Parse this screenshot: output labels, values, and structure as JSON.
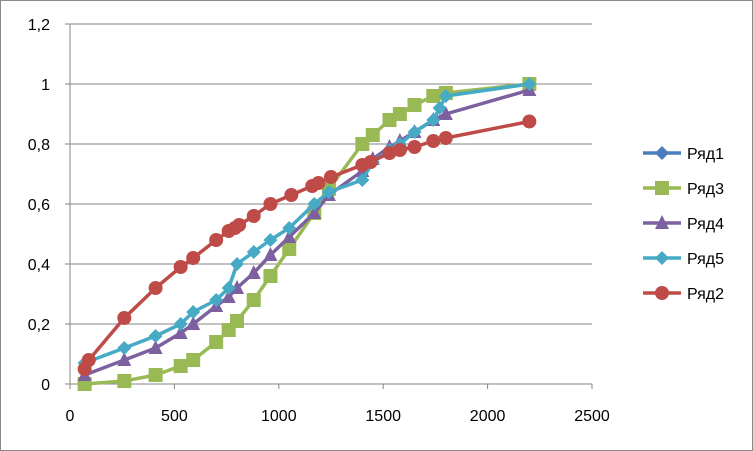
{
  "chart_data": {
    "type": "line",
    "title": "",
    "xlabel": "",
    "ylabel": "",
    "xlim": [
      0,
      2500
    ],
    "ylim": [
      0,
      1.2
    ],
    "x_ticks": [
      "0",
      "500",
      "1000",
      "1500",
      "2000",
      "2500"
    ],
    "y_ticks": [
      "0",
      "0,2",
      "0,4",
      "0,6",
      "0,8",
      "1",
      "1,2"
    ],
    "x_tick_values": [
      0,
      500,
      1000,
      1500,
      2000,
      2500
    ],
    "y_tick_values": [
      0,
      0.2,
      0.4,
      0.6,
      0.8,
      1.0,
      1.2
    ],
    "grid": "horizontal",
    "legend_position": "right",
    "series": [
      {
        "name": "Ряд1",
        "color": "#4a7ebb",
        "marker": "diamond",
        "points": []
      },
      {
        "name": "Ряд3",
        "color": "#98b954",
        "marker": "square",
        "points": [
          [
            70,
            0
          ],
          [
            260,
            0.01
          ],
          [
            410,
            0.03
          ],
          [
            530,
            0.06
          ],
          [
            590,
            0.08
          ],
          [
            700,
            0.14
          ],
          [
            760,
            0.18
          ],
          [
            800,
            0.21
          ],
          [
            880,
            0.28
          ],
          [
            960,
            0.36
          ],
          [
            1050,
            0.45
          ],
          [
            1170,
            0.57
          ],
          [
            1240,
            0.65
          ],
          [
            1400,
            0.8
          ],
          [
            1450,
            0.83
          ],
          [
            1530,
            0.88
          ],
          [
            1580,
            0.9
          ],
          [
            1650,
            0.93
          ],
          [
            1740,
            0.96
          ],
          [
            1800,
            0.97
          ],
          [
            2200,
            1.0
          ]
        ]
      },
      {
        "name": "Ряд4",
        "color": "#7d60a0",
        "marker": "triangle",
        "points": [
          [
            70,
            0.03
          ],
          [
            260,
            0.08
          ],
          [
            410,
            0.12
          ],
          [
            530,
            0.17
          ],
          [
            590,
            0.2
          ],
          [
            700,
            0.26
          ],
          [
            760,
            0.29
          ],
          [
            800,
            0.32
          ],
          [
            880,
            0.37
          ],
          [
            960,
            0.43
          ],
          [
            1050,
            0.49
          ],
          [
            1170,
            0.57
          ],
          [
            1240,
            0.63
          ],
          [
            1400,
            0.71
          ],
          [
            1450,
            0.75
          ],
          [
            1530,
            0.79
          ],
          [
            1580,
            0.81
          ],
          [
            1650,
            0.84
          ],
          [
            1740,
            0.88
          ],
          [
            1800,
            0.9
          ],
          [
            2200,
            0.98
          ]
        ]
      },
      {
        "name": "Ряд5",
        "color": "#46aac5",
        "marker": "diamond",
        "points": [
          [
            70,
            0.07
          ],
          [
            260,
            0.12
          ],
          [
            410,
            0.16
          ],
          [
            530,
            0.2
          ],
          [
            590,
            0.24
          ],
          [
            700,
            0.28
          ],
          [
            760,
            0.32
          ],
          [
            800,
            0.4
          ],
          [
            880,
            0.44
          ],
          [
            960,
            0.48
          ],
          [
            1050,
            0.52
          ],
          [
            1170,
            0.6
          ],
          [
            1240,
            0.64
          ],
          [
            1400,
            0.68
          ],
          [
            1450,
            0.74
          ],
          [
            1530,
            0.78
          ],
          [
            1580,
            0.8
          ],
          [
            1650,
            0.84
          ],
          [
            1740,
            0.88
          ],
          [
            1770,
            0.92
          ],
          [
            1800,
            0.96
          ],
          [
            2200,
            1.0
          ]
        ]
      },
      {
        "name": "Ряд2",
        "color": "#be4b48",
        "marker": "circle",
        "points": [
          [
            70,
            0.05
          ],
          [
            90,
            0.08
          ],
          [
            260,
            0.22
          ],
          [
            410,
            0.32
          ],
          [
            530,
            0.39
          ],
          [
            590,
            0.42
          ],
          [
            700,
            0.48
          ],
          [
            760,
            0.51
          ],
          [
            790,
            0.52
          ],
          [
            810,
            0.53
          ],
          [
            880,
            0.56
          ],
          [
            960,
            0.6
          ],
          [
            1060,
            0.63
          ],
          [
            1160,
            0.66
          ],
          [
            1190,
            0.67
          ],
          [
            1250,
            0.69
          ],
          [
            1400,
            0.73
          ],
          [
            1440,
            0.74
          ],
          [
            1530,
            0.77
          ],
          [
            1580,
            0.78
          ],
          [
            1650,
            0.79
          ],
          [
            1740,
            0.81
          ],
          [
            1800,
            0.82
          ],
          [
            2200,
            0.875
          ]
        ]
      }
    ]
  }
}
